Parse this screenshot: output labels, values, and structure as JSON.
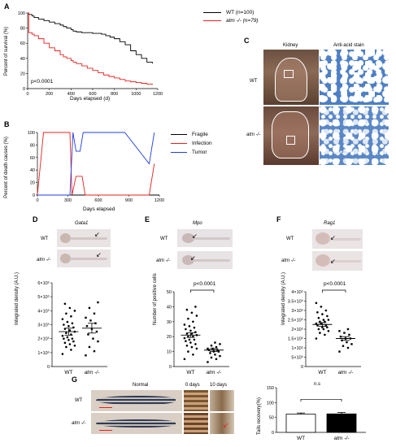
{
  "panels": {
    "A": "A",
    "B": "B",
    "C": "C",
    "D": "D",
    "E": "E",
    "F": "F",
    "G": "G"
  },
  "panelA": {
    "legend": [
      {
        "label": "WT (n=100)",
        "color": "#000000"
      },
      {
        "label": "atm -/- (n=79)",
        "color": "#e8201c"
      }
    ],
    "pvalue": "p<0.0001",
    "ylabel": "Percent of survival (%)",
    "xlabel": "Days elapsed (d)",
    "xticks": [
      "0",
      "200",
      "400",
      "600",
      "800",
      "1000",
      "1200"
    ],
    "yticks": [
      "0",
      "20",
      "40",
      "60",
      "80",
      "100"
    ]
  },
  "panelB": {
    "legend": [
      {
        "label": "Fragile",
        "color": "#000000"
      },
      {
        "label": "Infection",
        "color": "#e8201c"
      },
      {
        "label": "Tumor",
        "color": "#1f3fe0"
      }
    ],
    "ylabel": "Percent of death causes (%)",
    "xlabel": "Days elapsed",
    "xticks": [
      "0",
      "300",
      "600",
      "900",
      "1200"
    ],
    "yticks": [
      "0",
      "20",
      "40",
      "60",
      "80",
      "100"
    ]
  },
  "panelC": {
    "col_titles": [
      "Kidney",
      "Anti-acid stain"
    ],
    "row_labels": [
      "WT",
      "atm -/-"
    ]
  },
  "panelD": {
    "gene": "Gata1",
    "rows": [
      "WT",
      "atm -/-"
    ],
    "ylabel": "Integrated density (A.U.)",
    "yticks": [
      "0",
      "1×10⁵",
      "2×10⁵",
      "3×10⁵",
      "4×10⁵",
      "5×10⁵",
      "6×10⁵"
    ],
    "xlabels": [
      "WT",
      "atm -/-"
    ]
  },
  "panelE": {
    "gene": "Mpo",
    "rows": [
      "WT",
      "atm -/-"
    ],
    "ylabel": "Number of positive cells",
    "yticks": [
      "0",
      "10",
      "20",
      "30",
      "40",
      "50"
    ],
    "xlabels": [
      "WT",
      "atm -/-"
    ],
    "pvalue": "p<0.0001"
  },
  "panelF": {
    "gene": "Rag1",
    "rows": [
      "WT",
      "atm -/-"
    ],
    "ylabel": "Integrated density (A.U.)",
    "yticks": [
      "0",
      "5×10⁵",
      "1×10⁵",
      "1.5×10⁵",
      "2×10⁵",
      "2.5×10⁵",
      "3×10⁵",
      "3.5×10⁵",
      "4×10⁵"
    ],
    "xlabels": [
      "WT",
      "atm -/-"
    ],
    "pvalue": "p<0.0001"
  },
  "panelG": {
    "col_titles": [
      "Normal",
      "0 days",
      "10 days"
    ],
    "rows": [
      "WT",
      "atm -/-"
    ],
    "ylabel": "Tails recovery(%)",
    "yticks": [
      "0",
      "50",
      "100",
      "150"
    ],
    "xlabels": [
      "WT",
      "atm -/-"
    ],
    "ns": "n.s"
  },
  "chart_data": [
    {
      "type": "line",
      "panel": "A",
      "xlim": [
        0,
        1200
      ],
      "ylim": [
        0,
        100
      ],
      "series": [
        {
          "name": "WT (n=100)",
          "x": [
            0,
            10,
            40,
            60,
            100,
            150,
            200,
            250,
            300,
            330,
            360,
            400,
            420,
            450,
            500,
            550,
            600,
            640,
            680,
            720,
            760,
            800,
            850,
            900,
            950,
            1000,
            1050,
            1100,
            1150
          ],
          "y": [
            100,
            98,
            96,
            94,
            92,
            90,
            88,
            86,
            84,
            82,
            80,
            78,
            76,
            75,
            74,
            74,
            73,
            73,
            72,
            70,
            68,
            66,
            62,
            58,
            50,
            45,
            40,
            35,
            33
          ]
        },
        {
          "name": "atm -/- (n=79)",
          "x": [
            0,
            10,
            40,
            60,
            100,
            150,
            200,
            250,
            300,
            330,
            360,
            400,
            420,
            450,
            500,
            550,
            600,
            650,
            700,
            750,
            800,
            850,
            900,
            950,
            1000,
            1050,
            1100,
            1150
          ],
          "y": [
            100,
            74,
            72,
            70,
            66,
            60,
            54,
            50,
            45,
            42,
            40,
            37,
            35,
            33,
            30,
            27,
            24,
            21,
            18,
            16,
            14,
            12,
            10,
            9,
            8,
            7,
            6,
            5
          ]
        }
      ]
    },
    {
      "type": "line",
      "panel": "B",
      "xlim": [
        0,
        1200
      ],
      "ylim": [
        0,
        100
      ],
      "series": [
        {
          "name": "Fragile",
          "x": [
            0,
            1200
          ],
          "y": [
            0,
            0
          ]
        },
        {
          "name": "Infection",
          "x": [
            0,
            60,
            320,
            340,
            380,
            440,
            470,
            860,
            1100,
            1150
          ],
          "y": [
            0,
            100,
            100,
            0,
            30,
            30,
            0,
            0,
            0,
            50
          ]
        },
        {
          "name": "Tumor",
          "x": [
            0,
            320,
            350,
            380,
            420,
            450,
            480,
            860,
            1100,
            1150
          ],
          "y": [
            0,
            0,
            100,
            70,
            70,
            100,
            100,
            100,
            50,
            100
          ]
        }
      ]
    },
    {
      "type": "scatter",
      "panel": "D",
      "ylim": [
        0,
        600000
      ],
      "series": [
        {
          "name": "WT",
          "mean": 250000,
          "sem": 25000,
          "points": [
            90000,
            120000,
            140000,
            150000,
            160000,
            170000,
            180000,
            190000,
            200000,
            200000,
            210000,
            220000,
            230000,
            240000,
            250000,
            260000,
            270000,
            280000,
            290000,
            300000,
            310000,
            320000,
            340000,
            360000,
            380000,
            400000,
            420000,
            450000
          ]
        },
        {
          "name": "atm -/-",
          "mean": 275000,
          "sem": 35000,
          "points": [
            80000,
            110000,
            140000,
            180000,
            200000,
            230000,
            250000,
            270000,
            290000,
            310000,
            330000,
            350000,
            380000,
            420000,
            460000
          ]
        }
      ]
    },
    {
      "type": "scatter",
      "panel": "E",
      "ylim": [
        0,
        50
      ],
      "series": [
        {
          "name": "WT",
          "mean": 21,
          "sem": 1.5,
          "points": [
            5,
            8,
            10,
            12,
            13,
            14,
            15,
            16,
            17,
            18,
            18,
            19,
            20,
            20,
            21,
            22,
            22,
            23,
            24,
            25,
            26,
            27,
            28,
            30,
            32,
            34,
            36,
            38,
            40
          ]
        },
        {
          "name": "atm -/-",
          "mean": 11,
          "sem": 1,
          "points": [
            3,
            5,
            6,
            7,
            8,
            9,
            10,
            10,
            11,
            11,
            12,
            12,
            13,
            14,
            15,
            16
          ]
        }
      ]
    },
    {
      "type": "scatter",
      "panel": "F",
      "ylim": [
        0,
        400000
      ],
      "series": [
        {
          "name": "WT",
          "mean": 225000,
          "sem": 10000,
          "points": [
            150000,
            170000,
            180000,
            190000,
            200000,
            200000,
            210000,
            210000,
            220000,
            220000,
            230000,
            230000,
            240000,
            240000,
            250000,
            250000,
            260000,
            270000,
            280000,
            290000,
            300000,
            320000,
            340000
          ]
        },
        {
          "name": "atm -/-",
          "mean": 150000,
          "sem": 10000,
          "points": [
            80000,
            100000,
            110000,
            120000,
            130000,
            140000,
            150000,
            150000,
            160000,
            170000,
            180000,
            190000,
            200000
          ]
        }
      ]
    },
    {
      "type": "bar",
      "panel": "G",
      "categories": [
        "WT",
        "atm -/-"
      ],
      "values": [
        61,
        62
      ],
      "errors": [
        4,
        5
      ],
      "ylim": [
        0,
        150
      ]
    }
  ]
}
